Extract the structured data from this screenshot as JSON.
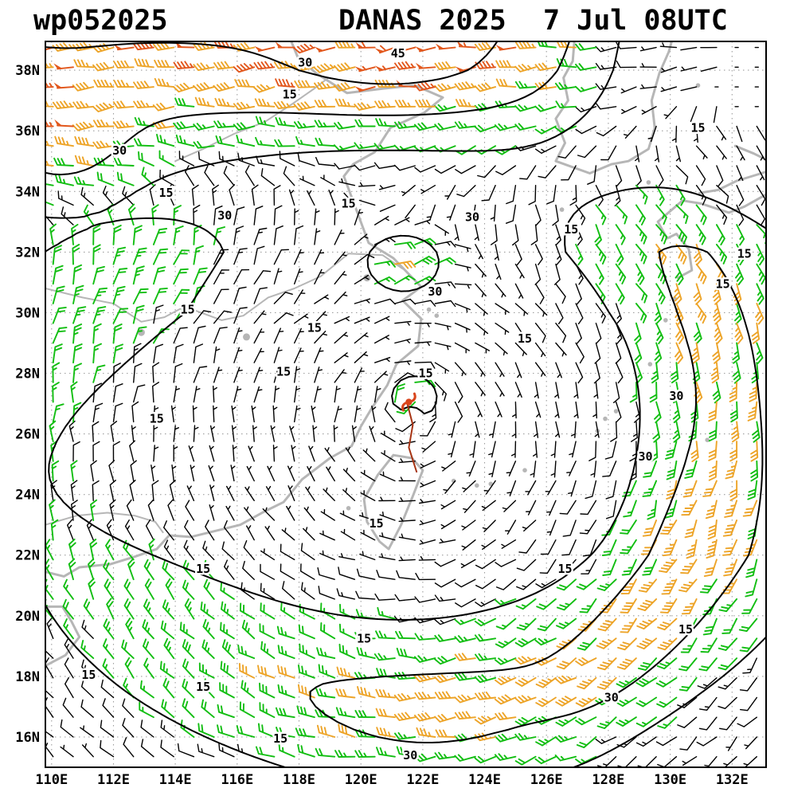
{
  "header": {
    "storm_id": "wp052025",
    "title_storm": "DANAS 2025",
    "title_datetime": "7 Jul 08UTC"
  },
  "axes": {
    "lon_min": 109.8,
    "lon_max": 133.1,
    "lat_min": 15.0,
    "lat_max": 38.95,
    "lon_ticks": [
      {
        "text": "110E",
        "deg": 110
      },
      {
        "text": "112E",
        "deg": 112
      },
      {
        "text": "114E",
        "deg": 114
      },
      {
        "text": "116E",
        "deg": 116
      },
      {
        "text": "118E",
        "deg": 118
      },
      {
        "text": "120E",
        "deg": 120
      },
      {
        "text": "122E",
        "deg": 122
      },
      {
        "text": "124E",
        "deg": 124
      },
      {
        "text": "126E",
        "deg": 126
      },
      {
        "text": "128E",
        "deg": 128
      },
      {
        "text": "130E",
        "deg": 130
      },
      {
        "text": "132E",
        "deg": 132
      }
    ],
    "lat_ticks": [
      {
        "text": "38N",
        "deg": 38
      },
      {
        "text": "36N",
        "deg": 36
      },
      {
        "text": "34N",
        "deg": 34
      },
      {
        "text": "32N",
        "deg": 32
      },
      {
        "text": "30N",
        "deg": 30
      },
      {
        "text": "28N",
        "deg": 28
      },
      {
        "text": "26N",
        "deg": 26
      },
      {
        "text": "24N",
        "deg": 24
      },
      {
        "text": "22N",
        "deg": 22
      },
      {
        "text": "20N",
        "deg": 20
      },
      {
        "text": "18N",
        "deg": 18
      },
      {
        "text": "16N",
        "deg": 16
      }
    ]
  },
  "thresholds": [
    15,
    30,
    45
  ],
  "palette": {
    "calm": "#000000",
    "moderate": "#12be12",
    "strong": "#eda428",
    "severe": "#e2571c",
    "coast": "#b6b6b6",
    "grid": "#9e9e9e",
    "contour": "#000000",
    "halo": "#ffffff",
    "storm": "#d9451c",
    "track": "#a63312",
    "frame": "#000000"
  },
  "wind_model": {
    "gyre": {
      "lon": 121.6,
      "lat": 26.3,
      "ex": 1.25,
      "ring_r": 9.0,
      "ring_w": 2.8,
      "ring_speed": 23,
      "base": 5,
      "damp_lat": 32,
      "damp_span": 6
    },
    "core": {
      "lon": 121.7,
      "lat": 27.1,
      "speed": 20,
      "radius": 1.0
    },
    "westerlies": {
      "lat0": 30,
      "rate": 5,
      "tilt": 0.12,
      "taper_lon": 127.5,
      "taper_w": 1.2,
      "jet": {
        "lon": 121.0,
        "lat": 38.2,
        "amp": 10,
        "slon": 3.5,
        "slat": 1.6
      },
      "nw": {
        "lon": 110.5,
        "lat": 35.5,
        "amp": 14,
        "slon": 2.0,
        "slat": 2.0
      }
    },
    "east_band": {
      "lon": 130.4,
      "bend_lat": 22,
      "bend": 0.55,
      "slon": 1.9,
      "lat": 23.5,
      "slat": 7.5,
      "amp": 0.5
    },
    "south_band": {
      "lon": 122.5,
      "slon": 4.5,
      "lat": 15.8,
      "slat": 2.4,
      "amp": 0.35
    },
    "weak_pool": {
      "lon": 113.0,
      "lat": 25.0,
      "slon": 5.5,
      "slat": 4.5,
      "amp": 0.62
    },
    "local_jets": [
      {
        "lon": 121.4,
        "lat": 31.7,
        "slon": 1.4,
        "slat": 1.1,
        "u": -26,
        "v": -10
      }
    ],
    "barb_grid": {
      "step": 0.65,
      "lon0": 110.05,
      "lat0": 15.35
    },
    "jitter": {
      "dir": 0.45,
      "spd": 0.34
    }
  },
  "contour_labels": [
    {
      "v": "45",
      "lon": 121.2,
      "lat": 38.55
    },
    {
      "v": "30",
      "lon": 118.2,
      "lat": 38.25
    },
    {
      "v": "15",
      "lon": 117.7,
      "lat": 37.2
    },
    {
      "v": "30",
      "lon": 112.2,
      "lat": 35.35
    },
    {
      "v": "15",
      "lon": 130.9,
      "lat": 36.1
    },
    {
      "v": "15",
      "lon": 113.7,
      "lat": 33.95
    },
    {
      "v": "30",
      "lon": 115.6,
      "lat": 33.2
    },
    {
      "v": "15",
      "lon": 119.6,
      "lat": 33.6
    },
    {
      "v": "30",
      "lon": 123.6,
      "lat": 33.15
    },
    {
      "v": "15",
      "lon": 126.8,
      "lat": 32.75
    },
    {
      "v": "15",
      "lon": 132.4,
      "lat": 31.95
    },
    {
      "v": "15",
      "lon": 131.7,
      "lat": 30.95
    },
    {
      "v": "30",
      "lon": 122.4,
      "lat": 30.7
    },
    {
      "v": "15",
      "lon": 114.4,
      "lat": 30.1
    },
    {
      "v": "15",
      "lon": 118.5,
      "lat": 29.5
    },
    {
      "v": "15",
      "lon": 125.3,
      "lat": 29.15
    },
    {
      "v": "15",
      "lon": 117.5,
      "lat": 28.05
    },
    {
      "v": "15",
      "lon": 122.1,
      "lat": 28.0
    },
    {
      "v": "30",
      "lon": 130.2,
      "lat": 27.25
    },
    {
      "v": "15",
      "lon": 113.4,
      "lat": 26.5
    },
    {
      "v": "30",
      "lon": 129.2,
      "lat": 25.25
    },
    {
      "v": "15",
      "lon": 120.5,
      "lat": 23.05
    },
    {
      "v": "15",
      "lon": 114.9,
      "lat": 21.55
    },
    {
      "v": "15",
      "lon": 126.6,
      "lat": 21.55
    },
    {
      "v": "15",
      "lon": 120.1,
      "lat": 19.25
    },
    {
      "v": "15",
      "lon": 130.5,
      "lat": 19.55
    },
    {
      "v": "15",
      "lon": 111.2,
      "lat": 18.05
    },
    {
      "v": "15",
      "lon": 114.9,
      "lat": 17.65
    },
    {
      "v": "30",
      "lon": 128.1,
      "lat": 17.3
    },
    {
      "v": "15",
      "lon": 117.4,
      "lat": 15.95
    },
    {
      "v": "30",
      "lon": 121.6,
      "lat": 15.4
    }
  ],
  "coast": {
    "lines": [
      [
        [
          109.8,
          21.45
        ],
        [
          110.4,
          21.3
        ],
        [
          110.9,
          21.6
        ],
        [
          111.9,
          21.7
        ],
        [
          112.7,
          21.95
        ],
        [
          113.4,
          22.2
        ],
        [
          113.8,
          22.65
        ],
        [
          114.5,
          22.6
        ],
        [
          115.3,
          22.8
        ],
        [
          116.1,
          23.0
        ],
        [
          116.9,
          23.45
        ],
        [
          117.5,
          23.75
        ],
        [
          118.1,
          24.5
        ],
        [
          119.0,
          25.2
        ],
        [
          119.7,
          25.6
        ],
        [
          120.0,
          26.25
        ],
        [
          120.35,
          26.85
        ],
        [
          120.85,
          27.6
        ],
        [
          121.15,
          28.3
        ],
        [
          121.85,
          28.9
        ],
        [
          121.95,
          29.8
        ],
        [
          121.35,
          30.4
        ],
        [
          121.95,
          30.85
        ],
        [
          121.05,
          31.8
        ],
        [
          120.25,
          32.3
        ],
        [
          119.85,
          33.4
        ],
        [
          119.45,
          34.5
        ],
        [
          119.75,
          34.9
        ],
        [
          120.45,
          35.3
        ],
        [
          120.95,
          36.1
        ],
        [
          122.05,
          36.6
        ],
        [
          122.65,
          37.1
        ],
        [
          121.75,
          37.5
        ],
        [
          120.75,
          37.4
        ],
        [
          119.55,
          37.25
        ],
        [
          118.55,
          37.9
        ],
        [
          117.95,
          38.45
        ],
        [
          117.75,
          38.95
        ]
      ],
      [
        [
          109.8,
          20.3
        ],
        [
          110.35,
          20.3
        ],
        [
          110.65,
          19.8
        ],
        [
          110.9,
          19.3
        ],
        [
          110.45,
          18.7
        ],
        [
          109.8,
          18.35
        ]
      ],
      [
        [
          126.9,
          38.95
        ],
        [
          126.85,
          38.3
        ],
        [
          126.55,
          37.75
        ],
        [
          126.7,
          37.0
        ],
        [
          126.3,
          36.4
        ],
        [
          126.6,
          35.6
        ],
        [
          126.3,
          35.0
        ],
        [
          127.4,
          34.6
        ],
        [
          128.1,
          34.9
        ],
        [
          128.65,
          35.0
        ],
        [
          129.3,
          35.4
        ],
        [
          129.5,
          36.1
        ],
        [
          129.4,
          37.0
        ],
        [
          129.65,
          37.9
        ],
        [
          129.95,
          38.6
        ],
        [
          130.05,
          38.95
        ]
      ],
      [
        [
          130.25,
          31.15
        ],
        [
          130.7,
          31.4
        ],
        [
          130.6,
          32.1
        ],
        [
          130.2,
          32.6
        ],
        [
          129.9,
          32.45
        ],
        [
          129.6,
          33.0
        ],
        [
          130.4,
          33.7
        ],
        [
          131.0,
          33.6
        ],
        [
          131.9,
          33.3
        ],
        [
          132.4,
          33.5
        ],
        [
          133.1,
          33.9
        ]
      ],
      [
        [
          130.95,
          33.95
        ],
        [
          131.55,
          34.05
        ],
        [
          132.15,
          34.35
        ],
        [
          132.95,
          34.6
        ],
        [
          133.1,
          34.65
        ]
      ],
      [
        [
          132.1,
          35.5
        ],
        [
          132.7,
          35.25
        ],
        [
          133.1,
          35.05
        ]
      ],
      [
        [
          121.05,
          25.3
        ],
        [
          121.65,
          25.2
        ],
        [
          122.0,
          24.8
        ],
        [
          121.7,
          24.0
        ],
        [
          121.3,
          23.0
        ],
        [
          120.9,
          22.2
        ],
        [
          120.6,
          22.45
        ],
        [
          120.2,
          23.1
        ],
        [
          120.1,
          23.85
        ],
        [
          120.55,
          24.65
        ],
        [
          121.05,
          25.3
        ]
      ]
    ],
    "rivers": [
      [
        [
          109.8,
          30.8
        ],
        [
          111.0,
          30.5
        ],
        [
          112.0,
          30.3
        ],
        [
          112.9,
          29.7
        ],
        [
          113.65,
          29.85
        ],
        [
          114.3,
          30.2
        ],
        [
          115.5,
          29.75
        ],
        [
          116.2,
          29.9
        ],
        [
          117.0,
          30.5
        ],
        [
          117.85,
          30.8
        ],
        [
          118.7,
          31.2
        ],
        [
          119.6,
          31.95
        ],
        [
          120.7,
          31.9
        ],
        [
          121.35,
          31.45
        ]
      ],
      [
        [
          109.8,
          23.0
        ],
        [
          110.8,
          23.3
        ],
        [
          111.8,
          23.4
        ],
        [
          112.7,
          23.3
        ],
        [
          113.35,
          23.1
        ],
        [
          113.6,
          22.75
        ]
      ],
      [
        [
          114.0,
          35.0
        ],
        [
          114.9,
          35.4
        ],
        [
          115.9,
          35.9
        ],
        [
          116.9,
          36.3
        ],
        [
          117.8,
          36.9
        ],
        [
          118.5,
          37.4
        ],
        [
          118.95,
          37.75
        ]
      ]
    ],
    "islands": [
      [
        119.6,
        23.55
      ],
      [
        122.2,
        30.1
      ],
      [
        122.45,
        29.9
      ],
      [
        127.9,
        26.5
      ],
      [
        128.25,
        26.75
      ],
      [
        127.65,
        26.1
      ],
      [
        129.35,
        28.3
      ],
      [
        129.85,
        29.75
      ],
      [
        130.15,
        30.45
      ],
      [
        125.3,
        24.8
      ],
      [
        124.2,
        24.35
      ],
      [
        123.75,
        24.3
      ],
      [
        123.0,
        24.45
      ],
      [
        131.2,
        25.8
      ],
      [
        126.5,
        33.4
      ],
      [
        129.3,
        34.3
      ],
      [
        130.9,
        37.5
      ]
    ],
    "lakes": [
      [
        116.3,
        29.2
      ],
      [
        112.9,
        29.35
      ],
      [
        120.2,
        31.15
      ]
    ]
  },
  "storm": {
    "lon": 121.55,
    "lat": 27.05,
    "track": [
      [
        121.5,
        27.0
      ],
      [
        121.68,
        26.3
      ],
      [
        121.55,
        25.55
      ],
      [
        121.8,
        24.75
      ]
    ]
  }
}
